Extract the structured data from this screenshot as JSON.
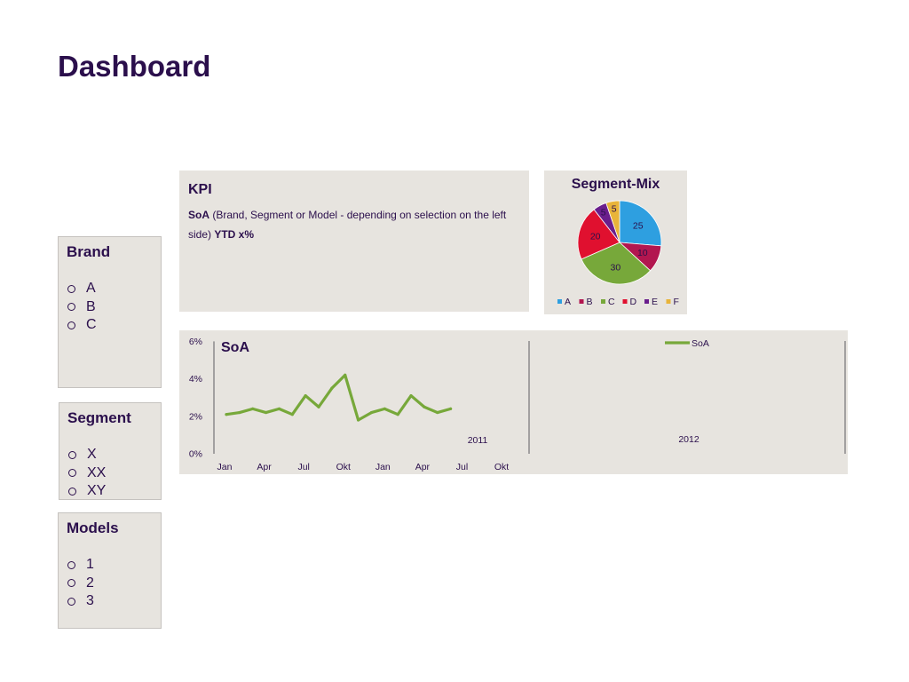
{
  "page": {
    "title": "Dashboard"
  },
  "filters": {
    "brand": {
      "title": "Brand",
      "items": [
        "A",
        "B",
        "C"
      ]
    },
    "segment": {
      "title": "Segment",
      "items": [
        "X",
        "XX",
        "XY"
      ]
    },
    "models": {
      "title": "Models",
      "items": [
        "1",
        "2",
        "3"
      ]
    }
  },
  "kpi": {
    "title": "KPI",
    "label_bold": "SoA",
    "description": " (Brand, Segment or Model - depending on selection on the left side) ",
    "value_bold": "YTD x%"
  },
  "colors": {
    "title": "#2b0f4c",
    "panel": "#e7e4df",
    "line": "#77a83a",
    "A": "#2e9fe0",
    "B": "#b2164f",
    "C": "#77a83a",
    "D": "#e0102f",
    "E": "#6a1e8c",
    "F": "#e8b43a"
  },
  "chart_data": [
    {
      "type": "pie",
      "title": "Segment-Mix",
      "legend": "bottom",
      "labels": [
        "A",
        "B",
        "C",
        "D",
        "E",
        "F"
      ],
      "values": [
        25,
        10,
        30,
        20,
        5,
        5
      ],
      "colors": [
        "#2e9fe0",
        "#b2164f",
        "#77a83a",
        "#e0102f",
        "#6a1e8c",
        "#e8b43a"
      ]
    },
    {
      "type": "line",
      "title": "SoA",
      "legend": "top-right",
      "y_ticks": [
        "0%",
        "2%",
        "4%",
        "6%"
      ],
      "ylim": [
        0,
        6
      ],
      "x_tick_labels": [
        "Jan",
        "Apr",
        "Jul",
        "Okt",
        "Jan",
        "Apr",
        "Jul",
        "Okt"
      ],
      "year_labels": [
        "2011",
        "2012"
      ],
      "months": 24,
      "series": [
        {
          "name": "SoA",
          "color": "#77a83a",
          "values": [
            2.1,
            2.2,
            2.4,
            2.2,
            2.4,
            2.1,
            3.1,
            2.5,
            3.5,
            4.2,
            1.8,
            2.2,
            2.4,
            2.1,
            3.1,
            2.5,
            2.2,
            2.4
          ]
        }
      ]
    }
  ]
}
